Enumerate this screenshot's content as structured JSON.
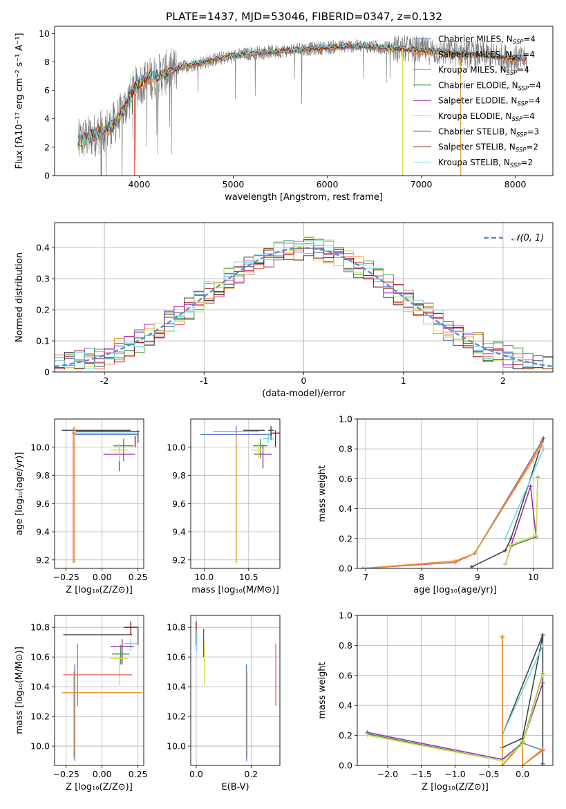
{
  "figure_title": "PLATE=1437, MJD=53046, FIBERID=0347, z=0.132",
  "colors": {
    "chabrier_miles": "#5b7fd6",
    "salpeter_miles": "#ee6a5a",
    "kroupa_miles": "#e8962a",
    "chabrier_elodie": "#3e9e3e",
    "salpeter_elodie": "#9b30b0",
    "kroupa_elodie": "#d8e050",
    "chabrier_stelib": "#444444",
    "salpeter_stelib": "#a01010",
    "kroupa_stelib": "#70d8e0",
    "data": "#777777",
    "gauss": "#5b8ad6",
    "grid": "#b0b0b0"
  },
  "chart_data": [
    {
      "id": "spectrum",
      "type": "line",
      "xlabel": "wavelength [Angstrom, rest frame]",
      "ylabel": "Flux [fλ10⁻¹⁷ erg cm⁻² s⁻¹ A⁻¹]",
      "xlim": [
        3100,
        8400
      ],
      "ylim": [
        0,
        10.5
      ],
      "xticks": [
        4000,
        5000,
        6000,
        7000,
        8000
      ],
      "yticks": [
        0,
        2,
        4,
        6,
        8,
        10
      ],
      "grid": false,
      "legend_position": "right",
      "legend": [
        {
          "name": "Chabrier MILES, N",
          "sub": "SSP",
          "tail": "=4",
          "color_key": "chabrier_miles"
        },
        {
          "name": "Salpeter MILES, N",
          "sub": "SSP",
          "tail": "=4",
          "color_key": "salpeter_miles"
        },
        {
          "name": "Kroupa MILES, N",
          "sub": "SSP",
          "tail": "=4",
          "color_key": "kroupa_miles"
        },
        {
          "name": "Chabrier ELODIE, N",
          "sub": "SSP",
          "tail": "=4",
          "color_key": "chabrier_elodie"
        },
        {
          "name": "Salpeter ELODIE, N",
          "sub": "SSP",
          "tail": "=4",
          "color_key": "salpeter_elodie"
        },
        {
          "name": "Kroupa ELODIE, N",
          "sub": "SSP",
          "tail": "=4",
          "color_key": "kroupa_elodie"
        },
        {
          "name": "Chabrier STELIB, N",
          "sub": "SSP",
          "tail": "=3",
          "color_key": "chabrier_stelib"
        },
        {
          "name": "Salpeter STELIB, N",
          "sub": "SSP",
          "tail": "=2",
          "color_key": "salpeter_stelib"
        },
        {
          "name": "Kroupa STELIB, N",
          "sub": "SSP",
          "tail": "=2",
          "color_key": "kroupa_stelib"
        }
      ],
      "continuum": {
        "x": [
          3350,
          3500,
          3700,
          3800,
          3900,
          4000,
          4100,
          4200,
          4300,
          4500,
          4700,
          4900,
          5000,
          5200,
          5400,
          5600,
          5800,
          6000,
          6200,
          6400,
          6600,
          6800,
          7000,
          7200,
          7400,
          7600,
          7800,
          8000,
          8120
        ],
        "y": [
          2.4,
          2.8,
          3.4,
          4.2,
          5.5,
          6.5,
          6.8,
          7.0,
          7.3,
          7.7,
          8.0,
          8.3,
          8.4,
          8.6,
          8.7,
          8.8,
          8.9,
          9.0,
          9.1,
          9.1,
          9.0,
          8.9,
          8.8,
          8.7,
          8.6,
          8.5,
          8.4,
          8.2,
          8.1
        ]
      },
      "model_dropouts": [
        {
          "x": 3600,
          "color_key": "salpeter_miles"
        },
        {
          "x": 3950,
          "color_key": "salpeter_miles"
        },
        {
          "x": 6800,
          "color_key": "kroupa_elodie"
        },
        {
          "x": 7420,
          "color_key": "kroupa_miles"
        }
      ]
    },
    {
      "id": "residuals",
      "type": "histogram",
      "xlabel": "(data-model)/error",
      "ylabel": "Normed distribution",
      "xlim": [
        -2.5,
        2.5
      ],
      "ylim": [
        0,
        0.48
      ],
      "xticks": [
        -2,
        -1,
        0,
        1,
        2
      ],
      "yticks": [
        0.0,
        0.1,
        0.2,
        0.3,
        0.4
      ],
      "grid": true,
      "legend_position": "top-right",
      "legend": [
        {
          "name": "𝒩(0, 1)",
          "color_key": "gauss"
        }
      ],
      "bin_width": 0.1
    },
    {
      "id": "age_vs_Z",
      "type": "errorbar",
      "xlabel": "Z [log₁₀(Z/Z⊙)]",
      "ylabel": "age  [log₁₀(age/yr)]",
      "xlim": [
        -0.33,
        0.29
      ],
      "ylim": [
        9.14,
        10.2
      ],
      "xticks": [
        -0.25,
        0.0,
        0.25
      ],
      "xticklabels": [
        "−0.25",
        "0.00",
        "0.25"
      ],
      "yticks": [
        9.2,
        9.4,
        9.6,
        9.8,
        10.0
      ],
      "yticklabels": [
        "9.2",
        "9.4",
        "9.6",
        "9.8",
        "10.0"
      ],
      "grid": true,
      "points": [
        {
          "x": -0.04,
          "xerr": 0.24,
          "y": 10.12,
          "ylo": 10.12,
          "yhi": 10.12,
          "color_key": "chabrier_stelib"
        },
        {
          "x": 0.04,
          "xerr": 0.22,
          "y": 10.11,
          "ylo": 10.11,
          "yhi": 10.11,
          "color_key": "salpeter_stelib"
        },
        {
          "x": 0.02,
          "xerr": 0.22,
          "y": 10.1,
          "ylo": 10.1,
          "yhi": 10.1,
          "color_key": "kroupa_stelib"
        },
        {
          "x": 0.03,
          "xerr": 0.22,
          "y": 10.09,
          "ylo": 10.09,
          "yhi": 10.09,
          "color_key": "chabrier_miles"
        },
        {
          "x": -0.19,
          "xerr": 0.01,
          "y": 10.1,
          "ylo": 9.18,
          "yhi": 10.15,
          "color_key": "kroupa_miles"
        },
        {
          "x": -0.2,
          "xerr": 0.01,
          "y": 10.1,
          "ylo": 9.18,
          "yhi": 10.14,
          "color_key": "salpeter_miles"
        },
        {
          "x": 0.15,
          "xerr": 0.07,
          "y": 10.01,
          "ylo": 9.9,
          "yhi": 10.06,
          "color_key": "chabrier_elodie"
        },
        {
          "x": 0.12,
          "xerr": 0.11,
          "y": 9.95,
          "ylo": 9.83,
          "yhi": 10.02,
          "color_key": "salpeter_elodie"
        },
        {
          "x": 0.12,
          "xerr": 0.06,
          "y": 9.98,
          "ylo": 9.9,
          "yhi": 10.03,
          "color_key": "kroupa_elodie"
        },
        {
          "x": 0.25,
          "xerr": 0.0,
          "y": 10.1,
          "ylo": 10.03,
          "yhi": 10.12,
          "color_key": "chabrier_stelib"
        },
        {
          "x": 0.23,
          "xerr": 0.0,
          "y": 10.05,
          "ylo": 10.0,
          "yhi": 10.08,
          "color_key": "salpeter_stelib"
        }
      ]
    },
    {
      "id": "age_vs_mass",
      "type": "errorbar",
      "xlabel": "mass [log₁₀(M/M⊙)]",
      "ylabel": "",
      "xlim": [
        9.85,
        10.85
      ],
      "ylim": [
        9.14,
        10.2
      ],
      "xticks": [
        10.0,
        10.5
      ],
      "xticklabels": [
        "10.0",
        "10.5"
      ],
      "yticks": [
        9.2,
        9.4,
        9.6,
        9.8,
        10.0
      ],
      "yticklabels": [
        "9.2",
        "9.4",
        "9.6",
        "9.8",
        "10.0"
      ],
      "grid": true,
      "points": [
        {
          "x": 10.36,
          "xerr": 0.4,
          "y": 10.09,
          "ylo": 9.18,
          "yhi": 10.15,
          "color_key": "chabrier_miles"
        },
        {
          "x": 10.36,
          "xerr": 0.0,
          "y": 10.09,
          "ylo": 9.18,
          "yhi": 10.1,
          "color_key": "kroupa_miles"
        },
        {
          "x": 10.36,
          "xerr": 0.26,
          "y": 10.11,
          "ylo": 10.11,
          "yhi": 10.11,
          "color_key": "kroupa_miles"
        },
        {
          "x": 10.56,
          "xerr": 0.12,
          "y": 10.12,
          "ylo": 10.12,
          "yhi": 10.12,
          "color_key": "chabrier_stelib"
        },
        {
          "x": 10.8,
          "xerr": 0.05,
          "y": 10.1,
          "ylo": 10.0,
          "yhi": 10.12,
          "color_key": "salpeter_stelib"
        },
        {
          "x": 10.75,
          "xerr": 0.03,
          "y": 10.12,
          "ylo": 10.05,
          "yhi": 10.15,
          "color_key": "chabrier_stelib"
        },
        {
          "x": 10.63,
          "xerr": 0.08,
          "y": 10.01,
          "ylo": 9.92,
          "yhi": 10.06,
          "color_key": "chabrier_elodie"
        },
        {
          "x": 10.66,
          "xerr": 0.1,
          "y": 9.95,
          "ylo": 9.85,
          "yhi": 10.02,
          "color_key": "salpeter_elodie"
        },
        {
          "x": 10.61,
          "xerr": 0.08,
          "y": 9.98,
          "ylo": 9.92,
          "yhi": 10.03,
          "color_key": "kroupa_elodie"
        },
        {
          "x": 10.72,
          "xerr": 0.06,
          "y": 10.06,
          "ylo": 10.03,
          "yhi": 10.1,
          "color_key": "kroupa_stelib"
        }
      ]
    },
    {
      "id": "weight_vs_age",
      "type": "line",
      "xlabel": "age  [log₁₀(age/yr)]",
      "ylabel": "mass weight",
      "xlim": [
        6.85,
        10.35
      ],
      "ylim": [
        0,
        1.0
      ],
      "xticks": [
        7,
        8,
        9,
        10
      ],
      "xticklabels": [
        "7",
        "8",
        "9",
        "10"
      ],
      "yticks": [
        0.0,
        0.2,
        0.4,
        0.6,
        0.8,
        1.0
      ],
      "yticklabels": [
        "0.0",
        "0.2",
        "0.4",
        "0.6",
        "0.8",
        "1.0"
      ],
      "grid": true,
      "series": [
        {
          "color_key": "chabrier_stelib",
          "x": [
            8.9,
            9.5,
            9.6,
            10.18
          ],
          "y": [
            0.01,
            0.12,
            0.2,
            0.87
          ]
        },
        {
          "color_key": "kroupa_stelib",
          "x": [
            9.5,
            10.18
          ],
          "y": [
            0.2,
            0.8
          ]
        },
        {
          "color_key": "chabrier_miles",
          "x": [
            6.95,
            8.6,
            8.95,
            10.15
          ],
          "y": [
            0.0,
            0.04,
            0.1,
            0.85
          ]
        },
        {
          "color_key": "salpeter_miles",
          "x": [
            6.95,
            8.6,
            8.95,
            10.15
          ],
          "y": [
            0.0,
            0.04,
            0.1,
            0.84
          ]
        },
        {
          "color_key": "kroupa_miles",
          "x": [
            6.95,
            8.6,
            8.95,
            10.15
          ],
          "y": [
            0.0,
            0.05,
            0.1,
            0.82
          ]
        },
        {
          "color_key": "chabrier_elodie",
          "x": [
            9.5,
            9.6,
            10.05,
            10.08
          ],
          "y": [
            0.03,
            0.15,
            0.21,
            0.61
          ]
        },
        {
          "color_key": "salpeter_elodie",
          "x": [
            9.5,
            9.6,
            9.95,
            10.05
          ],
          "y": [
            0.03,
            0.15,
            0.55,
            0.21
          ]
        },
        {
          "color_key": "kroupa_elodie",
          "x": [
            9.5,
            9.6,
            10.05,
            10.08
          ],
          "y": [
            0.03,
            0.16,
            0.22,
            0.6
          ]
        }
      ]
    },
    {
      "id": "mass_vs_Z",
      "type": "errorbar",
      "xlabel": "Z [log₁₀(Z/Z⊙)]",
      "ylabel": "mass [log₁₀(M/M⊙)]",
      "xlim": [
        -0.33,
        0.29
      ],
      "ylim": [
        9.87,
        10.88
      ],
      "xticks": [
        -0.25,
        0.0,
        0.25
      ],
      "xticklabels": [
        "−0.25",
        "0.00",
        "0.25"
      ],
      "yticks": [
        10.0,
        10.2,
        10.4,
        10.6,
        10.8
      ],
      "yticklabels": [
        "10.0",
        "10.2",
        "10.4",
        "10.6",
        "10.8"
      ],
      "grid": true,
      "points": [
        {
          "x": -0.03,
          "xerr": 0.24,
          "y": 10.75,
          "ylo": 10.75,
          "yhi": 10.75,
          "color_key": "chabrier_stelib"
        },
        {
          "x": 0.25,
          "xerr": 0.0,
          "y": 10.74,
          "ylo": 10.68,
          "yhi": 10.8,
          "color_key": "chabrier_stelib"
        },
        {
          "x": 0.2,
          "xerr": 0.05,
          "y": 10.8,
          "ylo": 10.75,
          "yhi": 10.84,
          "color_key": "salpeter_stelib"
        },
        {
          "x": 0.2,
          "xerr": 0.05,
          "y": 10.69,
          "ylo": 10.64,
          "yhi": 10.72,
          "color_key": "kroupa_stelib"
        },
        {
          "x": 0.14,
          "xerr": 0.08,
          "y": 10.67,
          "ylo": 10.55,
          "yhi": 10.72,
          "color_key": "salpeter_elodie"
        },
        {
          "x": 0.13,
          "xerr": 0.06,
          "y": 10.62,
          "ylo": 10.55,
          "yhi": 10.68,
          "color_key": "chabrier_elodie"
        },
        {
          "x": 0.12,
          "xerr": 0.06,
          "y": 10.59,
          "ylo": 10.41,
          "yhi": 10.62,
          "color_key": "kroupa_elodie"
        },
        {
          "x": -0.03,
          "xerr": 0.24,
          "y": 10.48,
          "ylo": 10.48,
          "yhi": 10.48,
          "color_key": "salpeter_miles"
        },
        {
          "x": -0.17,
          "xerr": 0.0,
          "y": 10.48,
          "ylo": 10.27,
          "yhi": 10.69,
          "color_key": "salpeter_miles"
        },
        {
          "x": 0.0,
          "xerr": 0.28,
          "y": 10.36,
          "ylo": 10.36,
          "yhi": 10.36,
          "color_key": "kroupa_miles"
        },
        {
          "x": -0.19,
          "xerr": 0.0,
          "y": 10.36,
          "ylo": 9.9,
          "yhi": 10.55,
          "color_key": "chabrier_miles"
        },
        {
          "x": -0.195,
          "xerr": 0.0,
          "y": 10.36,
          "ylo": 9.92,
          "yhi": 10.5,
          "color_key": "kroupa_miles"
        }
      ]
    },
    {
      "id": "mass_vs_EBV",
      "type": "errorbar",
      "xlabel": "E(B-V)",
      "ylabel": "",
      "xlim": [
        -0.02,
        0.305
      ],
      "ylim": [
        9.87,
        10.88
      ],
      "xticks": [
        0.0,
        0.2
      ],
      "xticklabels": [
        "0.0",
        "0.2"
      ],
      "yticks": [
        10.0,
        10.2,
        10.4,
        10.6,
        10.8
      ],
      "yticklabels": [
        "10.0",
        "10.2",
        "10.4",
        "10.6",
        "10.8"
      ],
      "grid": true,
      "points": [
        {
          "x": 0.0,
          "xerr": 0.0,
          "y": 10.75,
          "ylo": 10.68,
          "yhi": 10.84,
          "color_key": "salpeter_stelib"
        },
        {
          "x": 0.002,
          "xerr": 0.0,
          "y": 10.72,
          "ylo": 10.64,
          "yhi": 10.78,
          "color_key": "kroupa_stelib"
        },
        {
          "x": 0.027,
          "xerr": 0.0,
          "y": 10.7,
          "ylo": 10.6,
          "yhi": 10.79,
          "color_key": "salpeter_elodie"
        },
        {
          "x": 0.03,
          "xerr": 0.0,
          "y": 10.6,
          "ylo": 10.41,
          "yhi": 10.7,
          "color_key": "kroupa_elodie"
        },
        {
          "x": 0.183,
          "xerr": 0.0,
          "y": 10.36,
          "ylo": 9.9,
          "yhi": 10.55,
          "color_key": "chabrier_miles"
        },
        {
          "x": 0.185,
          "xerr": 0.0,
          "y": 10.36,
          "ylo": 9.92,
          "yhi": 10.5,
          "color_key": "kroupa_miles"
        },
        {
          "x": 0.29,
          "xerr": 0.0,
          "y": 10.48,
          "ylo": 10.27,
          "yhi": 10.69,
          "color_key": "salpeter_miles"
        }
      ]
    },
    {
      "id": "weight_vs_Z",
      "type": "line",
      "xlabel": "Z [log₁₀(Z/Z⊙)]",
      "ylabel": "mass weight",
      "xlim": [
        -2.45,
        0.45
      ],
      "ylim": [
        0,
        1.0
      ],
      "xticks": [
        -2.0,
        -1.5,
        -1.0,
        -0.5,
        0.0
      ],
      "xticklabels": [
        "−2.0",
        "−1.5",
        "−1.0",
        "−0.5",
        "0.0"
      ],
      "yticks": [
        0.0,
        0.2,
        0.4,
        0.6,
        0.8,
        1.0
      ],
      "yticklabels": [
        "0.0",
        "0.2",
        "0.4",
        "0.6",
        "0.8",
        "1.0"
      ],
      "grid": true,
      "series": [
        {
          "color_key": "chabrier_stelib",
          "x": [
            -0.3,
            0.0,
            0.3,
            0.3
          ],
          "y": [
            0.12,
            0.18,
            0.87,
            0.01
          ]
        },
        {
          "color_key": "chabrier_stelib",
          "x": [
            -0.3,
            0.3
          ],
          "y": [
            0.2,
            0.87
          ]
        },
        {
          "color_key": "kroupa_stelib",
          "x": [
            -0.3,
            0.3
          ],
          "y": [
            0.2,
            0.8
          ]
        },
        {
          "color_key": "chabrier_miles",
          "x": [
            -0.3,
            -0.3,
            0.0,
            0.3
          ],
          "y": [
            0.85,
            0.0,
            0.15,
            0.1
          ]
        },
        {
          "color_key": "salpeter_miles",
          "x": [
            -0.3,
            -0.3,
            0.0,
            0.0,
            0.3
          ],
          "y": [
            0.85,
            0.0,
            0.15,
            0.0,
            0.1
          ]
        },
        {
          "color_key": "kroupa_miles",
          "x": [
            -0.3,
            -0.3,
            0.0,
            0.0,
            0.3
          ],
          "y": [
            0.86,
            0.0,
            0.16,
            0.0,
            0.11
          ]
        },
        {
          "color_key": "salpeter_elodie",
          "x": [
            -2.3,
            -0.3,
            0.0,
            0.3
          ],
          "y": [
            0.22,
            0.04,
            0.15,
            0.55
          ]
        },
        {
          "color_key": "chabrier_elodie",
          "x": [
            -2.3,
            -0.3,
            0.0,
            0.3
          ],
          "y": [
            0.21,
            0.03,
            0.15,
            0.61
          ]
        },
        {
          "color_key": "kroupa_elodie",
          "x": [
            -2.3,
            -0.3,
            0.0,
            0.3
          ],
          "y": [
            0.2,
            0.03,
            0.14,
            0.6
          ]
        }
      ]
    }
  ]
}
